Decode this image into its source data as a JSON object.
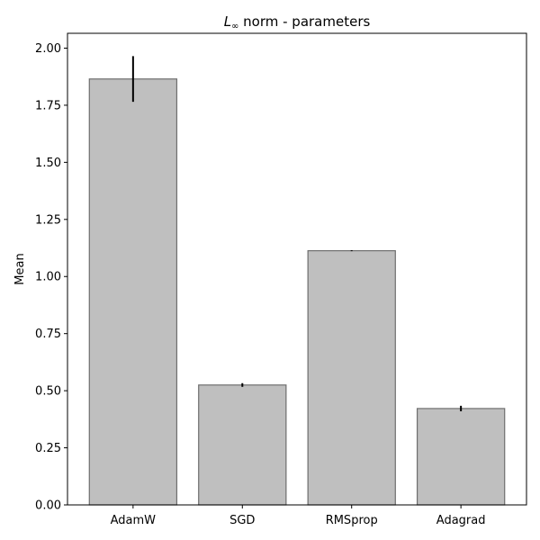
{
  "chart_data": {
    "type": "bar",
    "title_prefix": "L",
    "title_subscript": "∞",
    "title_suffix": " norm - parameters",
    "xlabel": "",
    "ylabel": "Mean",
    "categories": [
      "AdamW",
      "SGD",
      "RMSprop",
      "Adagrad"
    ],
    "values": [
      1.865,
      0.525,
      1.113,
      0.422
    ],
    "errors": [
      0.1,
      0.008,
      0.002,
      0.012
    ],
    "ylim": [
      0,
      2.065
    ],
    "yticks": [
      0.0,
      0.25,
      0.5,
      0.75,
      1.0,
      1.25,
      1.5,
      1.75,
      2.0
    ],
    "ytick_labels": [
      "0.00",
      "0.25",
      "0.50",
      "0.75",
      "1.00",
      "1.25",
      "1.50",
      "1.75",
      "2.00"
    ],
    "grid": false,
    "bar_color": "#bfbfbf",
    "bar_edge_color": "#6e6e6e",
    "error_color": "#000000"
  }
}
